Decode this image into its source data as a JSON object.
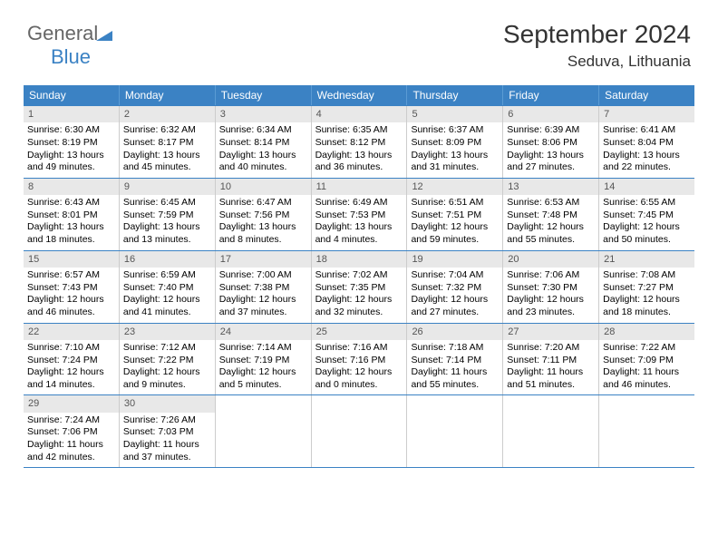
{
  "brand": {
    "general": "General",
    "blue": "Blue"
  },
  "title": "September 2024",
  "location": "Seduva, Lithuania",
  "colors": {
    "header_bg": "#3b82c4",
    "header_text": "#ffffff",
    "daynum_bg": "#e8e8e8",
    "row_border": "#3b82c4",
    "cell_border": "#cccccc"
  },
  "weekdays": [
    "Sunday",
    "Monday",
    "Tuesday",
    "Wednesday",
    "Thursday",
    "Friday",
    "Saturday"
  ],
  "weeks": [
    [
      {
        "n": "1",
        "sunrise": "Sunrise: 6:30 AM",
        "sunset": "Sunset: 8:19 PM",
        "day1": "Daylight: 13 hours",
        "day2": "and 49 minutes."
      },
      {
        "n": "2",
        "sunrise": "Sunrise: 6:32 AM",
        "sunset": "Sunset: 8:17 PM",
        "day1": "Daylight: 13 hours",
        "day2": "and 45 minutes."
      },
      {
        "n": "3",
        "sunrise": "Sunrise: 6:34 AM",
        "sunset": "Sunset: 8:14 PM",
        "day1": "Daylight: 13 hours",
        "day2": "and 40 minutes."
      },
      {
        "n": "4",
        "sunrise": "Sunrise: 6:35 AM",
        "sunset": "Sunset: 8:12 PM",
        "day1": "Daylight: 13 hours",
        "day2": "and 36 minutes."
      },
      {
        "n": "5",
        "sunrise": "Sunrise: 6:37 AM",
        "sunset": "Sunset: 8:09 PM",
        "day1": "Daylight: 13 hours",
        "day2": "and 31 minutes."
      },
      {
        "n": "6",
        "sunrise": "Sunrise: 6:39 AM",
        "sunset": "Sunset: 8:06 PM",
        "day1": "Daylight: 13 hours",
        "day2": "and 27 minutes."
      },
      {
        "n": "7",
        "sunrise": "Sunrise: 6:41 AM",
        "sunset": "Sunset: 8:04 PM",
        "day1": "Daylight: 13 hours",
        "day2": "and 22 minutes."
      }
    ],
    [
      {
        "n": "8",
        "sunrise": "Sunrise: 6:43 AM",
        "sunset": "Sunset: 8:01 PM",
        "day1": "Daylight: 13 hours",
        "day2": "and 18 minutes."
      },
      {
        "n": "9",
        "sunrise": "Sunrise: 6:45 AM",
        "sunset": "Sunset: 7:59 PM",
        "day1": "Daylight: 13 hours",
        "day2": "and 13 minutes."
      },
      {
        "n": "10",
        "sunrise": "Sunrise: 6:47 AM",
        "sunset": "Sunset: 7:56 PM",
        "day1": "Daylight: 13 hours",
        "day2": "and 8 minutes."
      },
      {
        "n": "11",
        "sunrise": "Sunrise: 6:49 AM",
        "sunset": "Sunset: 7:53 PM",
        "day1": "Daylight: 13 hours",
        "day2": "and 4 minutes."
      },
      {
        "n": "12",
        "sunrise": "Sunrise: 6:51 AM",
        "sunset": "Sunset: 7:51 PM",
        "day1": "Daylight: 12 hours",
        "day2": "and 59 minutes."
      },
      {
        "n": "13",
        "sunrise": "Sunrise: 6:53 AM",
        "sunset": "Sunset: 7:48 PM",
        "day1": "Daylight: 12 hours",
        "day2": "and 55 minutes."
      },
      {
        "n": "14",
        "sunrise": "Sunrise: 6:55 AM",
        "sunset": "Sunset: 7:45 PM",
        "day1": "Daylight: 12 hours",
        "day2": "and 50 minutes."
      }
    ],
    [
      {
        "n": "15",
        "sunrise": "Sunrise: 6:57 AM",
        "sunset": "Sunset: 7:43 PM",
        "day1": "Daylight: 12 hours",
        "day2": "and 46 minutes."
      },
      {
        "n": "16",
        "sunrise": "Sunrise: 6:59 AM",
        "sunset": "Sunset: 7:40 PM",
        "day1": "Daylight: 12 hours",
        "day2": "and 41 minutes."
      },
      {
        "n": "17",
        "sunrise": "Sunrise: 7:00 AM",
        "sunset": "Sunset: 7:38 PM",
        "day1": "Daylight: 12 hours",
        "day2": "and 37 minutes."
      },
      {
        "n": "18",
        "sunrise": "Sunrise: 7:02 AM",
        "sunset": "Sunset: 7:35 PM",
        "day1": "Daylight: 12 hours",
        "day2": "and 32 minutes."
      },
      {
        "n": "19",
        "sunrise": "Sunrise: 7:04 AM",
        "sunset": "Sunset: 7:32 PM",
        "day1": "Daylight: 12 hours",
        "day2": "and 27 minutes."
      },
      {
        "n": "20",
        "sunrise": "Sunrise: 7:06 AM",
        "sunset": "Sunset: 7:30 PM",
        "day1": "Daylight: 12 hours",
        "day2": "and 23 minutes."
      },
      {
        "n": "21",
        "sunrise": "Sunrise: 7:08 AM",
        "sunset": "Sunset: 7:27 PM",
        "day1": "Daylight: 12 hours",
        "day2": "and 18 minutes."
      }
    ],
    [
      {
        "n": "22",
        "sunrise": "Sunrise: 7:10 AM",
        "sunset": "Sunset: 7:24 PM",
        "day1": "Daylight: 12 hours",
        "day2": "and 14 minutes."
      },
      {
        "n": "23",
        "sunrise": "Sunrise: 7:12 AM",
        "sunset": "Sunset: 7:22 PM",
        "day1": "Daylight: 12 hours",
        "day2": "and 9 minutes."
      },
      {
        "n": "24",
        "sunrise": "Sunrise: 7:14 AM",
        "sunset": "Sunset: 7:19 PM",
        "day1": "Daylight: 12 hours",
        "day2": "and 5 minutes."
      },
      {
        "n": "25",
        "sunrise": "Sunrise: 7:16 AM",
        "sunset": "Sunset: 7:16 PM",
        "day1": "Daylight: 12 hours",
        "day2": "and 0 minutes."
      },
      {
        "n": "26",
        "sunrise": "Sunrise: 7:18 AM",
        "sunset": "Sunset: 7:14 PM",
        "day1": "Daylight: 11 hours",
        "day2": "and 55 minutes."
      },
      {
        "n": "27",
        "sunrise": "Sunrise: 7:20 AM",
        "sunset": "Sunset: 7:11 PM",
        "day1": "Daylight: 11 hours",
        "day2": "and 51 minutes."
      },
      {
        "n": "28",
        "sunrise": "Sunrise: 7:22 AM",
        "sunset": "Sunset: 7:09 PM",
        "day1": "Daylight: 11 hours",
        "day2": "and 46 minutes."
      }
    ],
    [
      {
        "n": "29",
        "sunrise": "Sunrise: 7:24 AM",
        "sunset": "Sunset: 7:06 PM",
        "day1": "Daylight: 11 hours",
        "day2": "and 42 minutes."
      },
      {
        "n": "30",
        "sunrise": "Sunrise: 7:26 AM",
        "sunset": "Sunset: 7:03 PM",
        "day1": "Daylight: 11 hours",
        "day2": "and 37 minutes."
      },
      null,
      null,
      null,
      null,
      null
    ]
  ]
}
